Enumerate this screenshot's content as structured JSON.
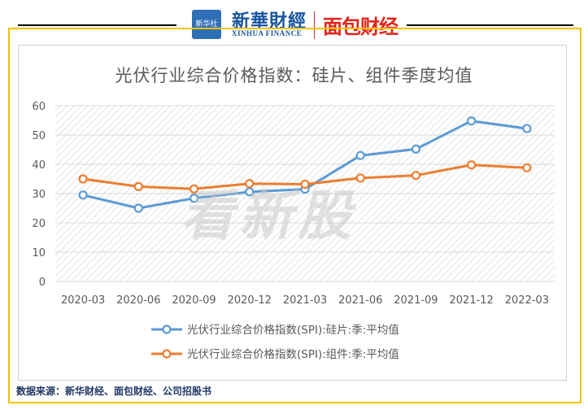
{
  "header": {
    "seal_text": "新华社",
    "brand_cn": "新華財經",
    "brand_en": "XINHUA FINANCE",
    "brand2": "面包财经"
  },
  "watermark": "看新股",
  "source": "数据来源：新华财经、面包财经、公司招股书",
  "colors": {
    "series1": "#5b9bd5",
    "series2": "#ed7d31",
    "frame": "#f2c200"
  },
  "chart_data": {
    "type": "line",
    "title": "光伏行业综合价格指数：硅片、组件季度均值",
    "categories": [
      "2020-03",
      "2020-06",
      "2020-09",
      "2020-12",
      "2021-03",
      "2021-06",
      "2021-09",
      "2021-12",
      "2022-03"
    ],
    "yticks": [
      "0",
      "10",
      "20",
      "30",
      "40",
      "50",
      "60"
    ],
    "ylim": [
      0,
      60
    ],
    "grid": "hatched",
    "legend_position": "bottom",
    "series": [
      {
        "name": "光伏行业综合价格指数(SPI):硅片:季:平均值",
        "color": "#5b9bd5",
        "values": [
          29.5,
          25.0,
          28.4,
          30.6,
          31.5,
          43.0,
          45.2,
          54.8,
          52.2
        ]
      },
      {
        "name": "光伏行业综合价格指数(SPI):组件:季:平均值",
        "color": "#ed7d31",
        "values": [
          35.0,
          32.4,
          31.6,
          33.4,
          33.2,
          35.3,
          36.2,
          39.8,
          38.8
        ]
      }
    ]
  }
}
